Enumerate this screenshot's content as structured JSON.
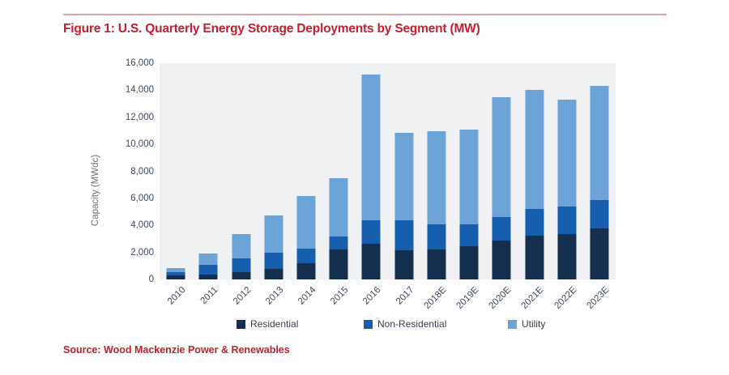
{
  "page": {
    "title": "Figure 1: U.S. Quarterly Energy Storage Deployments by Segment (MW)",
    "source": "Source: Wood Mackenzie Power & Renewables",
    "accent_color": "#c4202e",
    "rule_color": "#d7a2a8",
    "background_color": "#ffffff"
  },
  "chart_data": {
    "type": "bar",
    "stacked": true,
    "title": "U.S. Quarterly Energy Storage Deployments by Segment (MW)",
    "xlabel": "",
    "ylabel": "Capacity (MWdc)",
    "ylim": [
      0,
      16000
    ],
    "ytick_step": 2000,
    "grid": false,
    "plot_background": "#f0f1f2",
    "legend_position": "bottom",
    "categories": [
      "2010",
      "2011",
      "2012",
      "2013",
      "2014",
      "2015",
      "2016",
      "2017",
      "2018E",
      "2019E",
      "2020E",
      "2021E",
      "2022E",
      "2023E"
    ],
    "series": [
      {
        "name": "Residential",
        "color": "#15304e",
        "values": [
          300,
          340,
          540,
          800,
          1200,
          2200,
          2650,
          2150,
          2200,
          2450,
          2900,
          3250,
          3350,
          3750
        ]
      },
      {
        "name": "Non-Residential",
        "color": "#175fae",
        "values": [
          250,
          710,
          1010,
          1150,
          1050,
          1000,
          1700,
          2250,
          1900,
          1600,
          1700,
          1950,
          2050,
          2150
        ]
      },
      {
        "name": "Utility",
        "color": "#6da4d8",
        "values": [
          300,
          850,
          1800,
          2800,
          3950,
          4300,
          10800,
          6450,
          6850,
          7050,
          8900,
          8800,
          7900,
          8450
        ]
      }
    ],
    "totals": [
      850,
      1900,
      3350,
      4750,
      6200,
      7500,
      15150,
      10850,
      10950,
      11100,
      13500,
      14000,
      13300,
      14350
    ],
    "legend_x_positions": [
      292,
      449,
      627
    ]
  }
}
